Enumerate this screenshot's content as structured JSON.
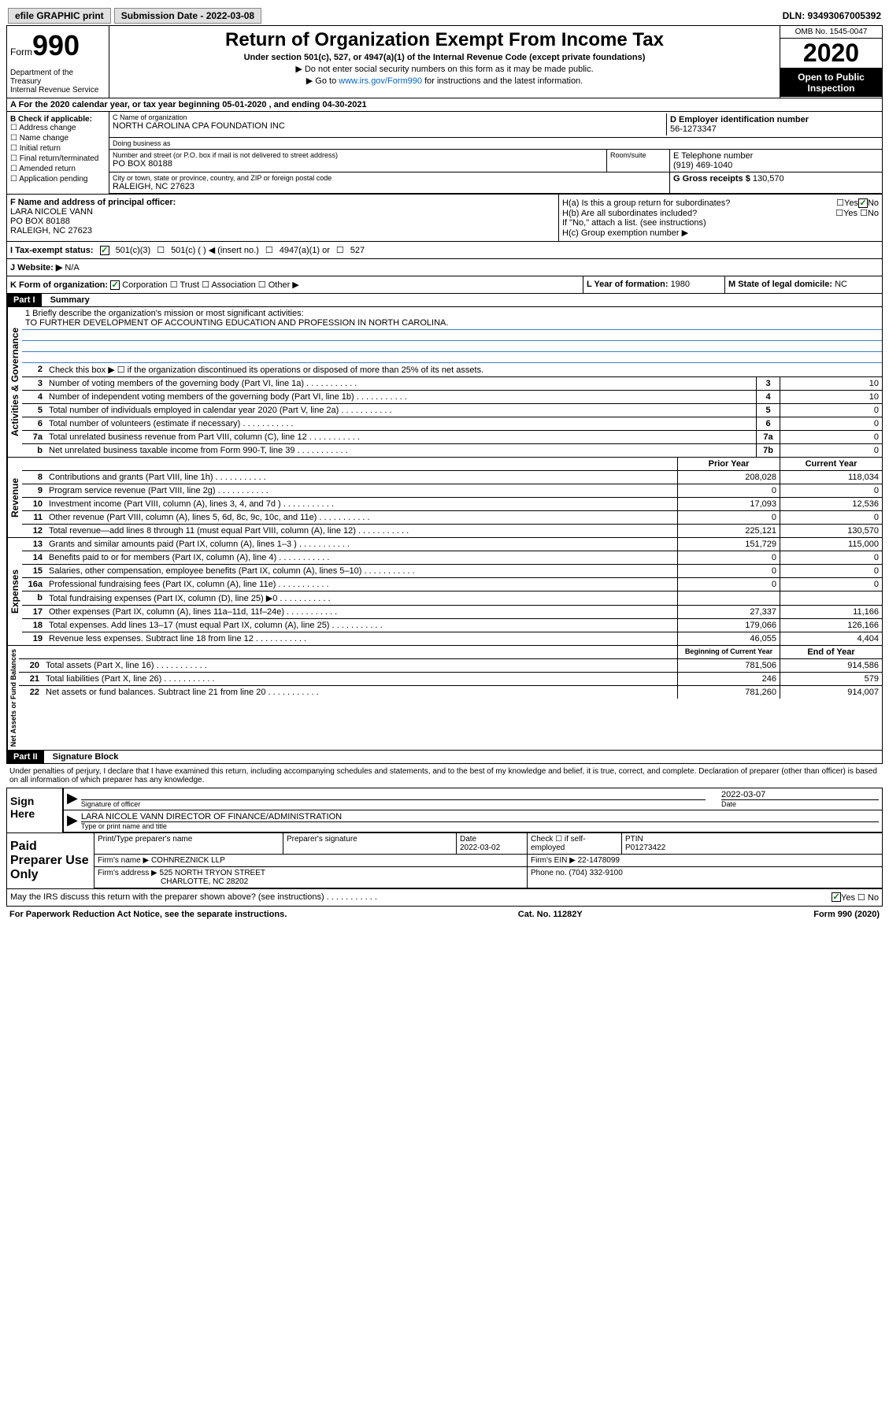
{
  "topbar": {
    "efile": "efile GRAPHIC print",
    "submission_label": "Submission Date - 2022-03-08",
    "dln": "DLN: 93493067005392"
  },
  "header": {
    "form_prefix": "Form",
    "form_number": "990",
    "dept": "Department of the Treasury\nInternal Revenue Service",
    "title": "Return of Organization Exempt From Income Tax",
    "subtitle": "Under section 501(c), 527, or 4947(a)(1) of the Internal Revenue Code (except private foundations)",
    "note1": "▶ Do not enter social security numbers on this form as it may be made public.",
    "note2_pre": "▶ Go to ",
    "note2_link": "www.irs.gov/Form990",
    "note2_post": " for instructions and the latest information.",
    "omb": "OMB No. 1545-0047",
    "year": "2020",
    "inspect": "Open to Public Inspection"
  },
  "line_a": "A For the 2020 calendar year, or tax year beginning 05-01-2020   , and ending 04-30-2021",
  "section_b": {
    "title": "B Check if applicable:",
    "items": [
      "Address change",
      "Name change",
      "Initial return",
      "Final return/terminated",
      "Amended return",
      "Application pending"
    ]
  },
  "section_c": {
    "name_lbl": "C Name of organization",
    "name": "NORTH CAROLINA CPA FOUNDATION INC",
    "dba_lbl": "Doing business as",
    "dba": "",
    "addr_lbl": "Number and street (or P.O. box if mail is not delivered to street address)",
    "room_lbl": "Room/suite",
    "addr": "PO BOX 80188",
    "city_lbl": "City or town, state or province, country, and ZIP or foreign postal code",
    "city": "RALEIGH, NC  27623"
  },
  "section_d": {
    "lbl": "D Employer identification number",
    "val": "56-1273347"
  },
  "section_e": {
    "lbl": "E Telephone number",
    "val": "(919) 469-1040"
  },
  "section_g": {
    "lbl": "G Gross receipts $ ",
    "val": "130,570"
  },
  "section_f": {
    "lbl": "F  Name and address of principal officer:",
    "name": "LARA NICOLE VANN",
    "addr1": "PO BOX 80188",
    "addr2": "RALEIGH, NC  27623"
  },
  "section_h": {
    "a": "H(a)  Is this a group return for subordinates?",
    "b": "H(b)  Are all subordinates included?",
    "b_note": "If \"No,\" attach a list. (see instructions)",
    "c": "H(c)  Group exemption number ▶"
  },
  "section_i": {
    "lbl": "I   Tax-exempt status:",
    "opts": [
      "501(c)(3)",
      "501(c) (  ) ◀ (insert no.)",
      "4947(a)(1) or",
      "527"
    ]
  },
  "section_j": {
    "lbl": "J   Website: ▶",
    "val": "N/A"
  },
  "section_k": {
    "lbl": "K Form of organization:",
    "opts": [
      "Corporation",
      "Trust",
      "Association",
      "Other ▶"
    ]
  },
  "section_l": {
    "lbl": "L Year of formation: ",
    "val": "1980"
  },
  "section_m": {
    "lbl": "M State of legal domicile: ",
    "val": "NC"
  },
  "part1": {
    "hdr": "Part I",
    "title": "Summary",
    "tab1": "Activities & Governance",
    "tab2": "Revenue",
    "tab3": "Expenses",
    "tab4": "Net Assets or Fund Balances",
    "line1_lbl": "1   Briefly describe the organization's mission or most significant activities:",
    "line1_val": "TO FURTHER DEVELOPMENT OF ACCOUNTING EDUCATION AND PROFESSION IN NORTH CAROLINA.",
    "line2": "Check this box ▶ ☐  if the organization discontinued its operations or disposed of more than 25% of its net assets.",
    "lines": [
      {
        "n": "3",
        "t": "Number of voting members of the governing body (Part VI, line 1a)",
        "b": "3",
        "v": "10"
      },
      {
        "n": "4",
        "t": "Number of independent voting members of the governing body (Part VI, line 1b)",
        "b": "4",
        "v": "10"
      },
      {
        "n": "5",
        "t": "Total number of individuals employed in calendar year 2020 (Part V, line 2a)",
        "b": "5",
        "v": "0"
      },
      {
        "n": "6",
        "t": "Total number of volunteers (estimate if necessary)",
        "b": "6",
        "v": "0"
      },
      {
        "n": "7a",
        "t": "Total unrelated business revenue from Part VIII, column (C), line 12",
        "b": "7a",
        "v": "0"
      },
      {
        "n": "b",
        "t": "Net unrelated business taxable income from Form 990-T, line 39",
        "b": "7b",
        "v": "0"
      }
    ],
    "col_prior": "Prior Year",
    "col_current": "Current Year",
    "rev_lines": [
      {
        "n": "8",
        "t": "Contributions and grants (Part VIII, line 1h)",
        "p": "208,028",
        "c": "118,034"
      },
      {
        "n": "9",
        "t": "Program service revenue (Part VIII, line 2g)",
        "p": "0",
        "c": "0"
      },
      {
        "n": "10",
        "t": "Investment income (Part VIII, column (A), lines 3, 4, and 7d )",
        "p": "17,093",
        "c": "12,536"
      },
      {
        "n": "11",
        "t": "Other revenue (Part VIII, column (A), lines 5, 6d, 8c, 9c, 10c, and 11e)",
        "p": "0",
        "c": "0"
      },
      {
        "n": "12",
        "t": "Total revenue—add lines 8 through 11 (must equal Part VIII, column (A), line 12)",
        "p": "225,121",
        "c": "130,570"
      }
    ],
    "exp_lines": [
      {
        "n": "13",
        "t": "Grants and similar amounts paid (Part IX, column (A), lines 1–3 )",
        "p": "151,729",
        "c": "115,000"
      },
      {
        "n": "14",
        "t": "Benefits paid to or for members (Part IX, column (A), line 4)",
        "p": "0",
        "c": "0"
      },
      {
        "n": "15",
        "t": "Salaries, other compensation, employee benefits (Part IX, column (A), lines 5–10)",
        "p": "0",
        "c": "0"
      },
      {
        "n": "16a",
        "t": "Professional fundraising fees (Part IX, column (A), line 11e)",
        "p": "0",
        "c": "0"
      },
      {
        "n": "b",
        "t": "Total fundraising expenses (Part IX, column (D), line 25) ▶0",
        "p": "",
        "c": ""
      },
      {
        "n": "17",
        "t": "Other expenses (Part IX, column (A), lines 11a–11d, 11f–24e)",
        "p": "27,337",
        "c": "11,166"
      },
      {
        "n": "18",
        "t": "Total expenses. Add lines 13–17 (must equal Part IX, column (A), line 25)",
        "p": "179,066",
        "c": "126,166"
      },
      {
        "n": "19",
        "t": "Revenue less expenses. Subtract line 18 from line 12",
        "p": "46,055",
        "c": "4,404"
      }
    ],
    "col_begin": "Beginning of Current Year",
    "col_end": "End of Year",
    "net_lines": [
      {
        "n": "20",
        "t": "Total assets (Part X, line 16)",
        "p": "781,506",
        "c": "914,586"
      },
      {
        "n": "21",
        "t": "Total liabilities (Part X, line 26)",
        "p": "246",
        "c": "579"
      },
      {
        "n": "22",
        "t": "Net assets or fund balances. Subtract line 21 from line 20",
        "p": "781,260",
        "c": "914,007"
      }
    ]
  },
  "part2": {
    "hdr": "Part II",
    "title": "Signature Block",
    "perjury": "Under penalties of perjury, I declare that I have examined this return, including accompanying schedules and statements, and to the best of my knowledge and belief, it is true, correct, and complete. Declaration of preparer (other than officer) is based on all information of which preparer has any knowledge.",
    "sign_here": "Sign Here",
    "sig_officer": "Signature of officer",
    "sig_date_lbl": "Date",
    "sig_date": "2022-03-07",
    "sig_name": "LARA NICOLE VANN  DIRECTOR OF FINANCE/ADMINISTRATION",
    "sig_name_lbl": "Type or print name and title",
    "paid_prep": "Paid Preparer Use Only",
    "prep_name_lbl": "Print/Type preparer's name",
    "prep_sig_lbl": "Preparer's signature",
    "prep_date_lbl": "Date",
    "prep_date": "2022-03-02",
    "prep_check_lbl": "Check ☐ if self-employed",
    "ptin_lbl": "PTIN",
    "ptin": "P01273422",
    "firm_name_lbl": "Firm's name     ▶",
    "firm_name": "COHNREZNICK LLP",
    "firm_ein_lbl": "Firm's EIN ▶",
    "firm_ein": "22-1478099",
    "firm_addr_lbl": "Firm's address ▶",
    "firm_addr1": "525 NORTH TRYON STREET",
    "firm_addr2": "CHARLOTTE, NC  28202",
    "phone_lbl": "Phone no. ",
    "phone": "(704) 332-9100",
    "discuss": "May the IRS discuss this return with the preparer shown above? (see instructions)"
  },
  "footer": {
    "left": "For Paperwork Reduction Act Notice, see the separate instructions.",
    "mid": "Cat. No. 11282Y",
    "right": "Form 990 (2020)"
  }
}
